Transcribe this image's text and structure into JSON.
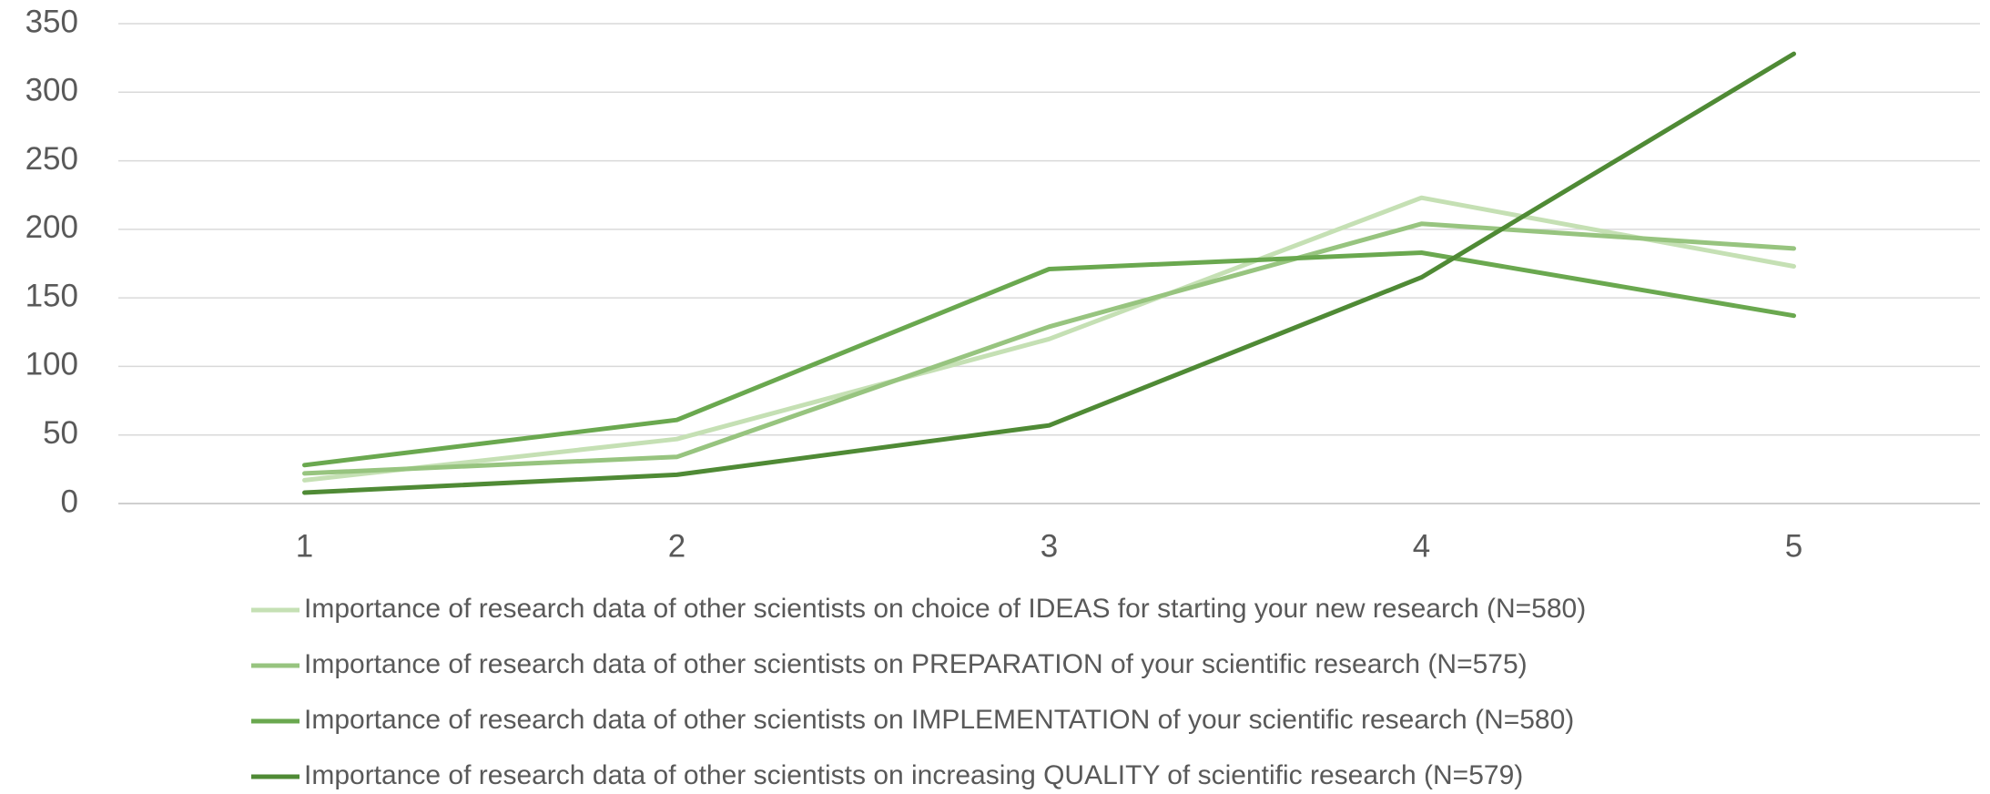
{
  "chart_data": {
    "type": "line",
    "categories": [
      "1",
      "2",
      "3",
      "4",
      "5"
    ],
    "series": [
      {
        "name": "Importance of research data of other scientists on choice of IDEAS for starting your new research (N=580)",
        "color": "#c5e0b4",
        "values": [
          17,
          47,
          120,
          223,
          173
        ]
      },
      {
        "name": "Importance of research data of other scientists on PREPARATION of your scientific research (N=575)",
        "color": "#97c47f",
        "values": [
          22,
          34,
          129,
          204,
          186
        ]
      },
      {
        "name": "Importance of research data of other scientists on IMPLEMENTATION of your scientific research (N=580)",
        "color": "#6aa84f",
        "values": [
          28,
          61,
          171,
          183,
          137
        ]
      },
      {
        "name": "Importance of research data of other scientists  on increasing QUALITY of scientific research (N=579)",
        "color": "#4f8a35",
        "values": [
          8,
          21,
          57,
          165,
          328
        ]
      }
    ],
    "ylim": [
      0,
      350
    ],
    "yticks": [
      0,
      50,
      100,
      150,
      200,
      250,
      300,
      350
    ],
    "grid": true
  }
}
